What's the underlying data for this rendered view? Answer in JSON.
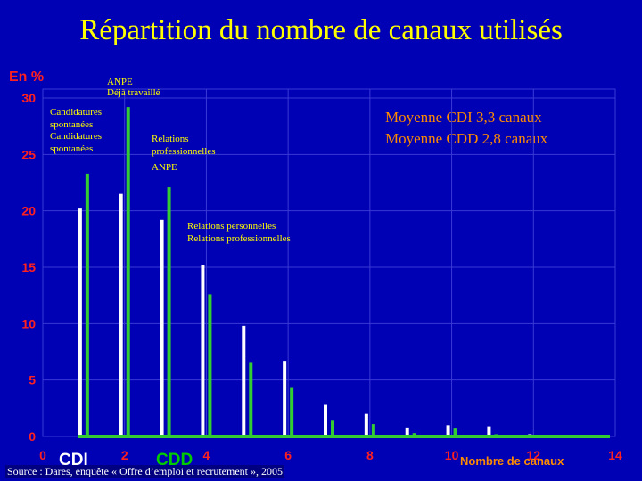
{
  "title": "Répartition du nombre de canaux utilisés",
  "y_unit": "En %",
  "averages": [
    "Moyenne CDI  3,3 canaux",
    "Moyenne CDD 2,8 canaux"
  ],
  "annotations": {
    "a1": "ANPE",
    "a2": "Déjà travaillé",
    "a3": "Candidatures",
    "a4": "spontanées",
    "a5": "Candidatures",
    "a6": "spontanées",
    "a7": "Relations",
    "a8": "professionnelles",
    "a9": "ANPE",
    "a10": "Relations personnelles",
    "a11": "Relations professionnelles"
  },
  "source": "Source : Dares, enquête « Offre d’emploi et recrutement », 2005",
  "colors": {
    "background": "#0000b4",
    "cdi": "#ffffff",
    "cdd": "#33cc33",
    "title": "#ffff00",
    "axis_text": "#ff2020",
    "grid": "#3a3ad6"
  },
  "chart_data": {
    "type": "bar",
    "x": [
      1,
      2,
      3,
      4,
      5,
      6,
      7,
      8,
      9,
      10,
      11,
      12,
      13
    ],
    "x_ticks": [
      "0",
      "2",
      "4",
      "6",
      "8",
      "10",
      "12",
      "14"
    ],
    "y_ticks": [
      "0",
      "5",
      "10",
      "15",
      "20",
      "25",
      "30"
    ],
    "xlim": [
      0,
      14
    ],
    "ylim": [
      0,
      30
    ],
    "xlabel": "Nombre de canaux",
    "ylabel": "En %",
    "grid": true,
    "series": [
      {
        "name": "CDI",
        "values": [
          20.2,
          21.5,
          19.2,
          15.2,
          9.8,
          6.7,
          2.8,
          2.0,
          0.8,
          1.0,
          0.9,
          0.2,
          0.1
        ]
      },
      {
        "name": "CDD",
        "values": [
          23.3,
          29.2,
          22.1,
          12.6,
          6.6,
          4.3,
          1.4,
          1.1,
          0.3,
          0.7,
          0.2,
          0.1,
          0.1
        ]
      }
    ]
  }
}
